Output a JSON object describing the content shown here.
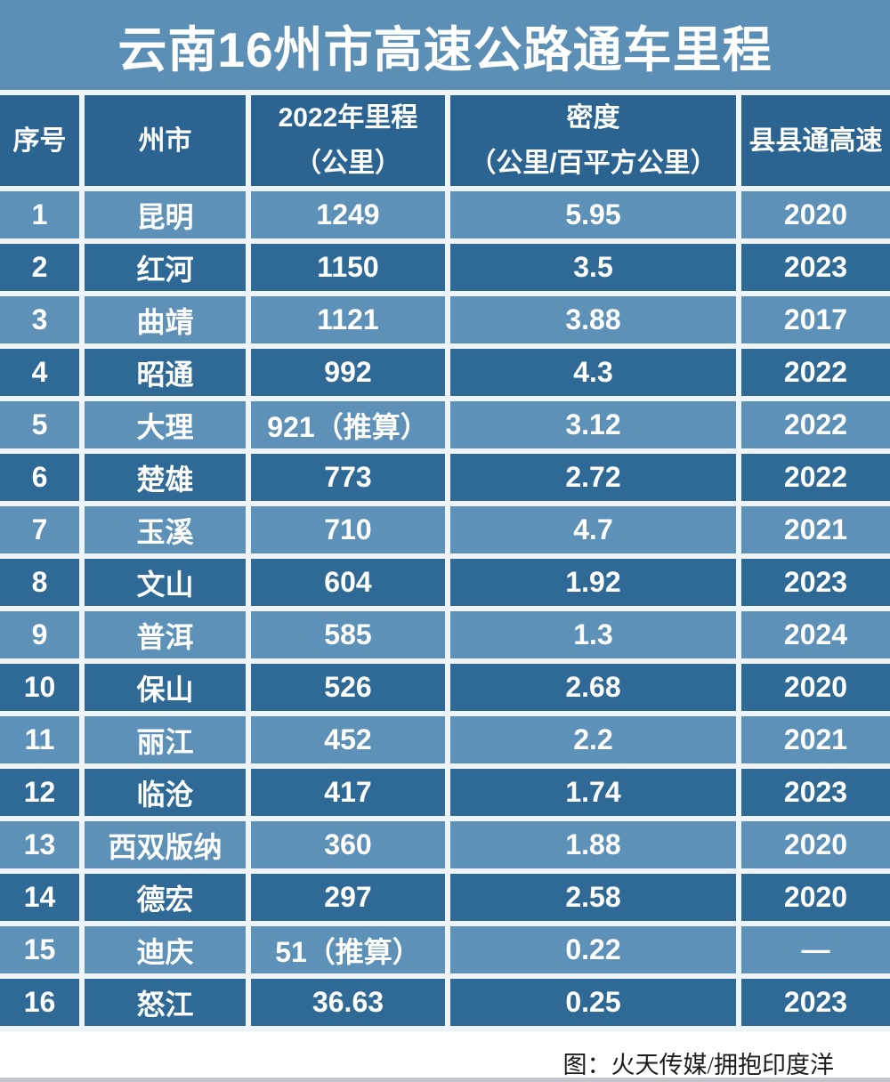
{
  "title": "云南16州市高速公路通车里程",
  "footer": {
    "credit": "图：火天传媒/拥抱印度洋"
  },
  "colors": {
    "page_bg": "#5C8FB5",
    "row_light": "#5D91B7",
    "row_dark": "#2F6A97",
    "header_bg": "#2B6491",
    "grid": "#EFF4F8",
    "title_text": "#FFFFFF",
    "footer_text": "#1C1C1C"
  },
  "chart_data": {
    "type": "table",
    "title": "云南16州市高速公路通车里程",
    "columns": [
      {
        "id": "index",
        "label": "序号",
        "lines": [
          "序号"
        ]
      },
      {
        "id": "prefecture",
        "label": "州市",
        "lines": [
          "州市"
        ]
      },
      {
        "id": "mileage",
        "label": "2022年里程（公里）",
        "lines": [
          "2022年里程",
          "（公里）"
        ]
      },
      {
        "id": "density",
        "label": "密度（公里/百平方公里）",
        "lines": [
          "密度",
          "（公里/百平方公里）"
        ]
      },
      {
        "id": "county",
        "label": "县县通高速",
        "lines": [
          "县县通高速"
        ]
      }
    ],
    "rows": [
      [
        "1",
        "昆明",
        "1249",
        "5.95",
        "2020"
      ],
      [
        "2",
        "红河",
        "1150",
        "3.5",
        "2023"
      ],
      [
        "3",
        "曲靖",
        "1121",
        "3.88",
        "2017"
      ],
      [
        "4",
        "昭通",
        "992",
        "4.3",
        "2022"
      ],
      [
        "5",
        "大理",
        "921（推算）",
        "3.12",
        "2022"
      ],
      [
        "6",
        "楚雄",
        "773",
        "2.72",
        "2022"
      ],
      [
        "7",
        "玉溪",
        "710",
        "4.7",
        "2021"
      ],
      [
        "8",
        "文山",
        "604",
        "1.92",
        "2023"
      ],
      [
        "9",
        "普洱",
        "585",
        "1.3",
        "2024"
      ],
      [
        "10",
        "保山",
        "526",
        "2.68",
        "2020"
      ],
      [
        "11",
        "丽江",
        "452",
        "2.2",
        "2021"
      ],
      [
        "12",
        "临沧",
        "417",
        "1.74",
        "2023"
      ],
      [
        "13",
        "西双版纳",
        "360",
        "1.88",
        "2020"
      ],
      [
        "14",
        "德宏",
        "297",
        "2.58",
        "2020"
      ],
      [
        "15",
        "迪庆",
        "51（推算）",
        "0.22",
        "—"
      ],
      [
        "16",
        "怒江",
        "36.63",
        "0.25",
        "2023"
      ]
    ],
    "layout": {
      "column_widths_pct": [
        9.2,
        18.7,
        22.4,
        32.7,
        17.0
      ],
      "row_striping": [
        "light",
        "dark"
      ],
      "grid": true,
      "legend": "none"
    }
  }
}
